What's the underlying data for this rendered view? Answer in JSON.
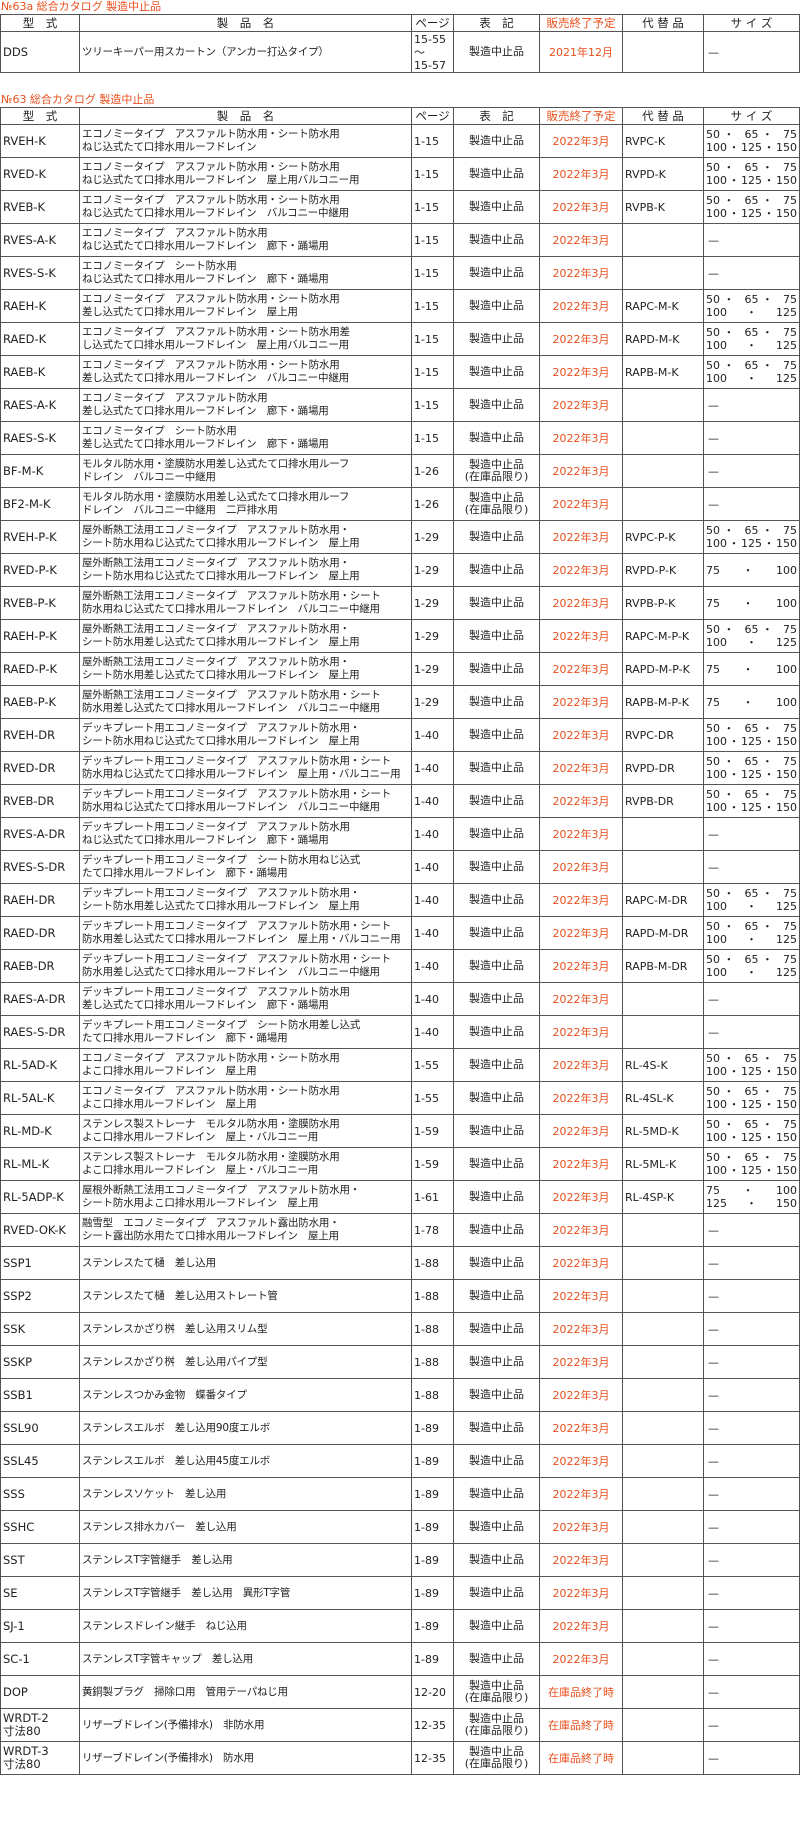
{
  "accent_color": "#e8501e",
  "headers": {
    "model": "型　式",
    "name": "製　品　名",
    "page": "ページ",
    "notation": "表　記",
    "end": "販売終了予定",
    "replacement": "代 替 品",
    "size": "サ イ ズ"
  },
  "section1": {
    "title": "№63a 総合カタログ 製造中止品",
    "rows": [
      {
        "model": "DDS",
        "name": "ツリーキーパー用スカートン（アンカー打込タイプ）",
        "page": "15-55\n〜\n15-57",
        "notation": "製造中止品",
        "end": "2021年12月",
        "replacement": "",
        "size": "—"
      }
    ]
  },
  "section2": {
    "title": "№63 総合カタログ 製造中止品",
    "rows": [
      {
        "model": "RVEH-K",
        "name": "エコノミータイプ　アスファルト防水用・シート防水用\nねじ込式たて口排水用ルーフドレイン",
        "page": "1-15",
        "notation": "製造中止品",
        "end": "2022年3月",
        "replacement": "RVPC-K",
        "size": "50・ 65・ 75\n100・125・150"
      },
      {
        "model": "RVED-K",
        "name": "エコノミータイプ　アスファルト防水用・シート防水用\nねじ込式たて口排水用ルーフドレイン　屋上用バルコニー用",
        "page": "1-15",
        "notation": "製造中止品",
        "end": "2022年3月",
        "replacement": "RVPD-K",
        "size": "50・ 65・ 75\n100・125・150"
      },
      {
        "model": "RVEB-K",
        "name": "エコノミータイプ　アスファルト防水用・シート防水用\nねじ込式たて口排水用ルーフドレイン　バルコニー中継用",
        "page": "1-15",
        "notation": "製造中止品",
        "end": "2022年3月",
        "replacement": "RVPB-K",
        "size": "50・ 65・ 75\n100・125・150"
      },
      {
        "model": "RVES-A-K",
        "name": "エコノミータイプ　アスファルト防水用\nねじ込式たて口排水用ルーフドレイン　廊下・踊場用",
        "page": "1-15",
        "notation": "製造中止品",
        "end": "2022年3月",
        "replacement": "",
        "size": "—"
      },
      {
        "model": "RVES-S-K",
        "name": "エコノミータイプ　シート防水用\nねじ込式たて口排水用ルーフドレイン　廊下・踊場用",
        "page": "1-15",
        "notation": "製造中止品",
        "end": "2022年3月",
        "replacement": "",
        "size": "—"
      },
      {
        "model": "RAEH-K",
        "name": "エコノミータイプ　アスファルト防水用・シート防水用\n差し込式たて口排水用ルーフドレイン　屋上用",
        "page": "1-15",
        "notation": "製造中止品",
        "end": "2022年3月",
        "replacement": "RAPC-M-K",
        "size": "50・ 65・ 75\n100・125"
      },
      {
        "model": "RAED-K",
        "name": "エコノミータイプ　アスファルト防水用・シート防水用差\nし込式たて口排水用ルーフドレイン　屋上用バルコニー用",
        "page": "1-15",
        "notation": "製造中止品",
        "end": "2022年3月",
        "replacement": "RAPD-M-K",
        "size": "50・ 65・ 75\n100・125"
      },
      {
        "model": "RAEB-K",
        "name": "エコノミータイプ　アスファルト防水用・シート防水用\n差し込式たて口排水用ルーフドレイン　バルコニー中継用",
        "page": "1-15",
        "notation": "製造中止品",
        "end": "2022年3月",
        "replacement": "RAPB-M-K",
        "size": "50・ 65・ 75\n100・125"
      },
      {
        "model": "RAES-A-K",
        "name": "エコノミータイプ　アスファルト防水用\n差し込式たて口排水用ルーフドレイン　廊下・踊場用",
        "page": "1-15",
        "notation": "製造中止品",
        "end": "2022年3月",
        "replacement": "",
        "size": "—"
      },
      {
        "model": "RAES-S-K",
        "name": "エコノミータイプ　シート防水用\n差し込式たて口排水用ルーフドレイン　廊下・踊場用",
        "page": "1-15",
        "notation": "製造中止品",
        "end": "2022年3月",
        "replacement": "",
        "size": "—"
      },
      {
        "model": "BF-M-K",
        "name": "モルタル防水用・塗膜防水用差し込式たて口排水用ルーフ\nドレイン　バルコニー中継用",
        "page": "1-26",
        "notation": "製造中止品\n(在庫品限り)",
        "end": "2022年3月",
        "replacement": "",
        "size": "—"
      },
      {
        "model": "BF2-M-K",
        "name": "モルタル防水用・塗膜防水用差し込式たて口排水用ルーフ\nドレイン　バルコニー中継用　二戸排水用",
        "page": "1-26",
        "notation": "製造中止品\n(在庫品限り)",
        "end": "2022年3月",
        "replacement": "",
        "size": "—"
      },
      {
        "model": "RVEH-P-K",
        "name": "屋外断熱工法用エコノミータイプ　アスファルト防水用・\nシート防水用ねじ込式たて口排水用ルーフドレイン　屋上用",
        "page": "1-29",
        "notation": "製造中止品",
        "end": "2022年3月",
        "replacement": "RVPC-P-K",
        "size": "50・ 65・ 75\n100・125・150"
      },
      {
        "model": "RVED-P-K",
        "name": "屋外断熱工法用エコノミータイプ　アスファルト防水用・\nシート防水用ねじ込式たて口排水用ルーフドレイン　屋上用",
        "page": "1-29",
        "notation": "製造中止品",
        "end": "2022年3月",
        "replacement": "RVPD-P-K",
        "size": "75・100"
      },
      {
        "model": "RVEB-P-K",
        "name": "屋外断熱工法用エコノミータイプ　アスファルト防水用・シート\n防水用ねじ込式たて口排水用ルーフドレイン　バルコニー中継用",
        "page": "1-29",
        "notation": "製造中止品",
        "end": "2022年3月",
        "replacement": "RVPB-P-K",
        "size": "75・100"
      },
      {
        "model": "RAEH-P-K",
        "name": "屋外断熱工法用エコノミータイプ　アスファルト防水用・\nシート防水用差し込式たて口排水用ルーフドレイン　屋上用",
        "page": "1-29",
        "notation": "製造中止品",
        "end": "2022年3月",
        "replacement": "RAPC-M-P-K",
        "size": "50・ 65・ 75\n100・125"
      },
      {
        "model": "RAED-P-K",
        "name": "屋外断熱工法用エコノミータイプ　アスファルト防水用・\nシート防水用差し込式たて口排水用ルーフドレイン　屋上用",
        "page": "1-29",
        "notation": "製造中止品",
        "end": "2022年3月",
        "replacement": "RAPD-M-P-K",
        "size": "75・100"
      },
      {
        "model": "RAEB-P-K",
        "name": "屋外断熱工法用エコノミータイプ　アスファルト防水用・シート\n防水用差し込式たて口排水用ルーフドレイン　バルコニー中継用",
        "page": "1-29",
        "notation": "製造中止品",
        "end": "2022年3月",
        "replacement": "RAPB-M-P-K",
        "size": "75・100"
      },
      {
        "model": "RVEH-DR",
        "name": "デッキプレート用エコノミータイプ　アスファルト防水用・\nシート防水用ねじ込式たて口排水用ルーフドレイン　屋上用",
        "page": "1-40",
        "notation": "製造中止品",
        "end": "2022年3月",
        "replacement": "RVPC-DR",
        "size": "50・ 65・ 75\n100・125・150"
      },
      {
        "model": "RVED-DR",
        "name": "デッキプレート用エコノミータイプ　アスファルト防水用・シート\n防水用ねじ込式たて口排水用ルーフドレイン　屋上用・バルコニー用",
        "page": "1-40",
        "notation": "製造中止品",
        "end": "2022年3月",
        "replacement": "RVPD-DR",
        "size": "50・ 65・ 75\n100・125・150"
      },
      {
        "model": "RVEB-DR",
        "name": "デッキプレート用エコノミータイプ　アスファルト防水用・シート\n防水用ねじ込式たて口排水用ルーフドレイン　バルコニー中継用",
        "page": "1-40",
        "notation": "製造中止品",
        "end": "2022年3月",
        "replacement": "RVPB-DR",
        "size": "50・ 65・ 75\n100・125・150"
      },
      {
        "model": "RVES-A-DR",
        "name": "デッキプレート用エコノミータイプ　アスファルト防水用\nねじ込式たて口排水用ルーフドレイン　廊下・踊場用",
        "page": "1-40",
        "notation": "製造中止品",
        "end": "2022年3月",
        "replacement": "",
        "size": "—"
      },
      {
        "model": "RVES-S-DR",
        "name": "デッキプレート用エコノミータイプ　シート防水用ねじ込式\nたて口排水用ルーフドレイン　廊下・踊場用",
        "page": "1-40",
        "notation": "製造中止品",
        "end": "2022年3月",
        "replacement": "",
        "size": "—"
      },
      {
        "model": "RAEH-DR",
        "name": "デッキプレート用エコノミータイプ　アスファルト防水用・\nシート防水用差し込式たて口排水用ルーフドレイン　屋上用",
        "page": "1-40",
        "notation": "製造中止品",
        "end": "2022年3月",
        "replacement": "RAPC-M-DR",
        "size": "50・ 65・ 75\n100・125"
      },
      {
        "model": "RAED-DR",
        "name": "デッキプレート用エコノミータイプ　アスファルト防水用・シート\n防水用差し込式たて口排水用ルーフドレイン　屋上用・バルコニー用",
        "page": "1-40",
        "notation": "製造中止品",
        "end": "2022年3月",
        "replacement": "RAPD-M-DR",
        "size": "50・ 65・ 75\n100・125"
      },
      {
        "model": "RAEB-DR",
        "name": "デッキプレート用エコノミータイプ　アスファルト防水用・シート\n防水用差し込式たて口排水用ルーフドレイン　バルコニー中継用",
        "page": "1-40",
        "notation": "製造中止品",
        "end": "2022年3月",
        "replacement": "RAPB-M-DR",
        "size": "50・ 65・ 75\n100・125"
      },
      {
        "model": "RAES-A-DR",
        "name": "デッキプレート用エコノミータイプ　アスファルト防水用\n差し込式たて口排水用ルーフドレイン　廊下・踊場用",
        "page": "1-40",
        "notation": "製造中止品",
        "end": "2022年3月",
        "replacement": "",
        "size": "—"
      },
      {
        "model": "RAES-S-DR",
        "name": "デッキプレート用エコノミータイプ　シート防水用差し込式\nたて口排水用ルーフドレイン　廊下・踊場用",
        "page": "1-40",
        "notation": "製造中止品",
        "end": "2022年3月",
        "replacement": "",
        "size": "—"
      },
      {
        "model": "RL-5AD-K",
        "name": "エコノミータイプ　アスファルト防水用・シート防水用\nよこ口排水用ルーフドレイン　屋上用",
        "page": "1-55",
        "notation": "製造中止品",
        "end": "2022年3月",
        "replacement": "RL-4S-K",
        "size": "50・ 65・ 75\n100・125・150"
      },
      {
        "model": "RL-5AL-K",
        "name": "エコノミータイプ　アスファルト防水用・シート防水用\nよこ口排水用ルーフドレイン　屋上用",
        "page": "1-55",
        "notation": "製造中止品",
        "end": "2022年3月",
        "replacement": "RL-4SL-K",
        "size": "50・ 65・ 75\n100・125・150"
      },
      {
        "model": "RL-MD-K",
        "name": "ステンレス製ストレーナ　モルタル防水用・塗膜防水用\nよこ口排水用ルーフドレイン　屋上・バルコニー用",
        "page": "1-59",
        "notation": "製造中止品",
        "end": "2022年3月",
        "replacement": "RL-5MD-K",
        "size": "50・ 65・ 75\n100・125・150"
      },
      {
        "model": "RL-ML-K",
        "name": "ステンレス製ストレーナ　モルタル防水用・塗膜防水用\nよこ口排水用ルーフドレイン　屋上・バルコニー用",
        "page": "1-59",
        "notation": "製造中止品",
        "end": "2022年3月",
        "replacement": "RL-5ML-K",
        "size": "50・ 65・ 75\n100・125・150"
      },
      {
        "model": "RL-5ADP-K",
        "name": "屋根外断熱工法用エコノミータイプ　アスファルト防水用・\nシート防水用よこ口排水用ルーフドレイン　屋上用",
        "page": "1-61",
        "notation": "製造中止品",
        "end": "2022年3月",
        "replacement": "RL-4SP-K",
        "size": "75・100\n125・150"
      },
      {
        "model": "RVED-OK-K",
        "name": "融雪型　エコノミータイプ　アスファルト露出防水用・\nシート露出防水用たて口排水用ルーフドレイン　屋上用",
        "page": "1-78",
        "notation": "製造中止品",
        "end": "2022年3月",
        "replacement": "",
        "size": "—"
      },
      {
        "model": "SSP1",
        "name": "ステンレスたて樋　差し込用",
        "page": "1-88",
        "notation": "製造中止品",
        "end": "2022年3月",
        "replacement": "",
        "size": "—"
      },
      {
        "model": "SSP2",
        "name": "ステンレスたて樋　差し込用ストレート管",
        "page": "1-88",
        "notation": "製造中止品",
        "end": "2022年3月",
        "replacement": "",
        "size": "—"
      },
      {
        "model": "SSK",
        "name": "ステンレスかざり桝　差し込用スリム型",
        "page": "1-88",
        "notation": "製造中止品",
        "end": "2022年3月",
        "replacement": "",
        "size": "—"
      },
      {
        "model": "SSKP",
        "name": "ステンレスかざり桝　差し込用パイプ型",
        "page": "1-88",
        "notation": "製造中止品",
        "end": "2022年3月",
        "replacement": "",
        "size": "—"
      },
      {
        "model": "SSB1",
        "name": "ステンレスつかみ金物　蝶番タイプ",
        "page": "1-88",
        "notation": "製造中止品",
        "end": "2022年3月",
        "replacement": "",
        "size": "—"
      },
      {
        "model": "SSL90",
        "name": "ステンレスエルボ　差し込用90度エルボ",
        "page": "1-89",
        "notation": "製造中止品",
        "end": "2022年3月",
        "replacement": "",
        "size": "—"
      },
      {
        "model": "SSL45",
        "name": "ステンレスエルボ　差し込用45度エルボ",
        "page": "1-89",
        "notation": "製造中止品",
        "end": "2022年3月",
        "replacement": "",
        "size": "—"
      },
      {
        "model": "SSS",
        "name": "ステンレスソケット　差し込用",
        "page": "1-89",
        "notation": "製造中止品",
        "end": "2022年3月",
        "replacement": "",
        "size": "—"
      },
      {
        "model": "SSHC",
        "name": "ステンレス排水カバー　差し込用",
        "page": "1-89",
        "notation": "製造中止品",
        "end": "2022年3月",
        "replacement": "",
        "size": "—"
      },
      {
        "model": "SST",
        "name": "ステンレスT字管継手　差し込用",
        "page": "1-89",
        "notation": "製造中止品",
        "end": "2022年3月",
        "replacement": "",
        "size": "—"
      },
      {
        "model": "SE",
        "name": "ステンレスT字管継手　差し込用　異形T字管",
        "page": "1-89",
        "notation": "製造中止品",
        "end": "2022年3月",
        "replacement": "",
        "size": "—"
      },
      {
        "model": "SJ-1",
        "name": "ステンレスドレイン継手　ねじ込用",
        "page": "1-89",
        "notation": "製造中止品",
        "end": "2022年3月",
        "replacement": "",
        "size": "—"
      },
      {
        "model": "SC-1",
        "name": "ステンレスT字管キャップ　差し込用",
        "page": "1-89",
        "notation": "製造中止品",
        "end": "2022年3月",
        "replacement": "",
        "size": "—"
      },
      {
        "model": "DOP",
        "name": "黄銅製プラグ　掃除口用　管用テーパねじ用",
        "page": "12-20",
        "notation": "製造中止品\n(在庫品限り)",
        "end": "在庫品終了時",
        "replacement": "",
        "size": "—"
      },
      {
        "model": "WRDT-2\n寸法80",
        "name": "リザーブドレイン(予備排水)　非防水用",
        "page": "12-35",
        "notation": "製造中止品\n(在庫品限り)",
        "end": "在庫品終了時",
        "replacement": "",
        "size": "—"
      },
      {
        "model": "WRDT-3\n寸法80",
        "name": "リザーブドレイン(予備排水)　防水用",
        "page": "12-35",
        "notation": "製造中止品\n(在庫品限り)",
        "end": "在庫品終了時",
        "replacement": "",
        "size": "—"
      }
    ]
  }
}
